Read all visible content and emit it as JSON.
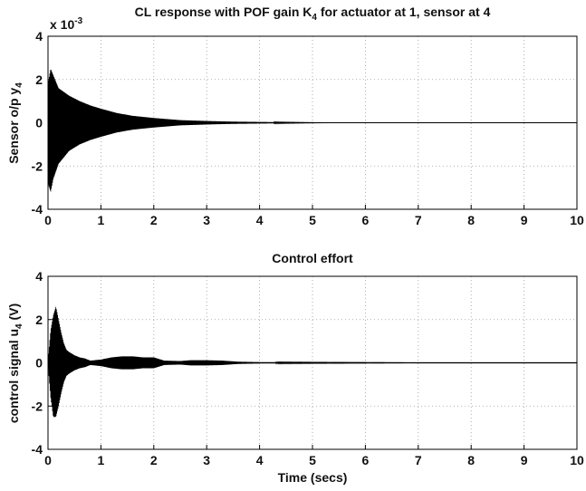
{
  "chart_data": [
    {
      "type": "line",
      "title": "CL response with POF gain K",
      "title_sub": "4",
      "title_rest": " for actuator at 1, sensor at 4",
      "ylabel": "Sensor o/p y",
      "ylabel_sub": "4",
      "xlabel": "",
      "exponent_label": "x 10",
      "exponent_power": "-3",
      "xlim": [
        0,
        10
      ],
      "ylim": [
        -4,
        4
      ],
      "xticks": [
        "0",
        "1",
        "2",
        "3",
        "4",
        "5",
        "6",
        "7",
        "8",
        "9",
        "10"
      ],
      "yticks": [
        "4",
        "2",
        "0",
        "-2",
        "-4"
      ],
      "grid": true,
      "series": [
        {
          "envelope_t": [
            0,
            0.05,
            0.1,
            0.2,
            0.4,
            0.6,
            0.8,
            1.0,
            1.3,
            1.6,
            2.0,
            2.5,
            3.0,
            3.5,
            4.0,
            4.5,
            5.0,
            5.6
          ],
          "envelope_upper": [
            1.8,
            2.5,
            2.2,
            1.6,
            1.25,
            1.0,
            0.8,
            0.65,
            0.45,
            0.32,
            0.22,
            0.12,
            0.08,
            0.05,
            0.035,
            0.02,
            0.01,
            0.0
          ],
          "envelope_lower": [
            -2.8,
            -3.2,
            -2.6,
            -1.9,
            -1.3,
            -1.0,
            -0.8,
            -0.65,
            -0.45,
            -0.32,
            -0.22,
            -0.12,
            -0.08,
            -0.05,
            -0.035,
            -0.02,
            -0.01,
            0.0
          ]
        }
      ]
    },
    {
      "type": "line",
      "title": "Control effort",
      "ylabel": "control signal u",
      "ylabel_sub": "4",
      "ylabel_rest": " (V)",
      "xlabel": "Time (secs)",
      "xlim": [
        0,
        10
      ],
      "ylim": [
        -4,
        4
      ],
      "xticks": [
        "0",
        "1",
        "2",
        "3",
        "4",
        "5",
        "6",
        "7",
        "8",
        "9",
        "10"
      ],
      "yticks": [
        "4",
        "2",
        "0",
        "-2",
        "-4"
      ],
      "grid": true,
      "series": [
        {
          "envelope_t": [
            0,
            0.05,
            0.1,
            0.15,
            0.2,
            0.25,
            0.3,
            0.35,
            0.4,
            0.5,
            0.6,
            0.7,
            0.8,
            1.0,
            1.2,
            1.4,
            1.6,
            1.8,
            2.0,
            2.2,
            2.5,
            2.7,
            3.0,
            3.3,
            3.6,
            4.0,
            5.0,
            6.0,
            7.0,
            8.0,
            9.0,
            10.0
          ],
          "envelope_upper": [
            0.1,
            1.5,
            2.2,
            2.6,
            2.0,
            1.4,
            0.9,
            0.6,
            0.5,
            0.35,
            0.25,
            0.2,
            0.1,
            0.15,
            0.25,
            0.3,
            0.3,
            0.25,
            0.25,
            0.1,
            0.08,
            0.12,
            0.12,
            0.1,
            0.05,
            0.03,
            0.02,
            0.015,
            0.01,
            0.01,
            0.01,
            0.01
          ],
          "envelope_lower": [
            -0.1,
            -1.6,
            -2.5,
            -2.5,
            -2.0,
            -1.4,
            -0.9,
            -0.6,
            -0.5,
            -0.35,
            -0.25,
            -0.2,
            -0.1,
            -0.15,
            -0.25,
            -0.3,
            -0.3,
            -0.25,
            -0.25,
            -0.1,
            -0.08,
            -0.12,
            -0.12,
            -0.1,
            -0.05,
            -0.03,
            -0.02,
            -0.015,
            -0.01,
            -0.01,
            -0.01,
            -0.01
          ]
        }
      ]
    }
  ]
}
